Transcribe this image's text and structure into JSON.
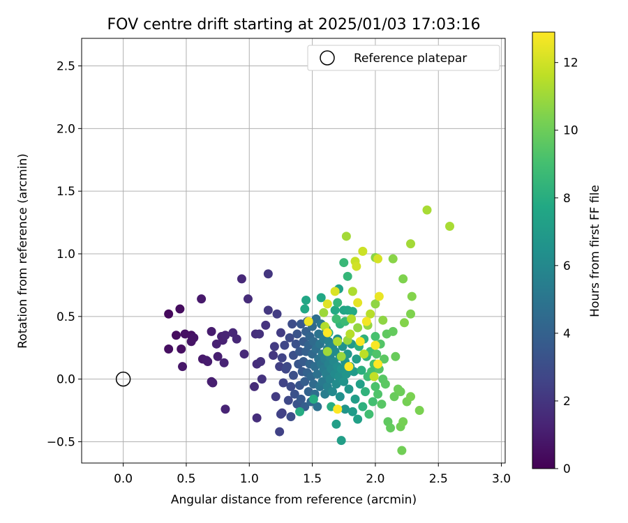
{
  "chart_data": {
    "type": "scatter",
    "title": "FOV centre drift starting at 2025/01/03 17:03:16",
    "xlabel": "Angular distance from reference (arcmin)",
    "ylabel": "Rotation from reference (arcmin)",
    "xlim": [
      -0.33,
      3.03
    ],
    "ylim": [
      -0.67,
      2.72
    ],
    "xticks": [
      0.0,
      0.5,
      1.0,
      1.5,
      2.0,
      2.5,
      3.0
    ],
    "xtick_labels": [
      "0.0",
      "0.5",
      "1.0",
      "1.5",
      "2.0",
      "2.5",
      "3.0"
    ],
    "yticks": [
      -0.5,
      0.0,
      0.5,
      1.0,
      1.5,
      2.0,
      2.5
    ],
    "ytick_labels": [
      "−0.5",
      "0.0",
      "0.5",
      "1.0",
      "1.5",
      "2.0",
      "2.5"
    ],
    "grid": true,
    "legend": {
      "position": "top-right",
      "entries": [
        "Reference platepar"
      ]
    },
    "reference_point": {
      "x": 0.0,
      "y": 0.0,
      "label": "Reference platepar"
    },
    "colorbar": {
      "label": "Hours from first FF file",
      "min": 0,
      "max": 12.9,
      "ticks": [
        0,
        2,
        4,
        6,
        8,
        10,
        12
      ],
      "tick_labels": [
        "0",
        "2",
        "4",
        "6",
        "8",
        "10",
        "12"
      ],
      "colormap": "viridis"
    },
    "points": [
      {
        "x": 0.36,
        "y": 0.52,
        "h": 0.3
      },
      {
        "x": 0.45,
        "y": 0.56,
        "h": 0.4
      },
      {
        "x": 0.42,
        "y": 0.35,
        "h": 0.4
      },
      {
        "x": 0.36,
        "y": 0.24,
        "h": 0.5
      },
      {
        "x": 0.46,
        "y": 0.24,
        "h": 0.5
      },
      {
        "x": 0.49,
        "y": 0.36,
        "h": 0.6
      },
      {
        "x": 0.54,
        "y": 0.35,
        "h": 0.6
      },
      {
        "x": 0.54,
        "y": 0.3,
        "h": 0.7
      },
      {
        "x": 0.56,
        "y": 0.33,
        "h": 0.7
      },
      {
        "x": 0.47,
        "y": 0.1,
        "h": 0.8
      },
      {
        "x": 0.62,
        "y": 0.64,
        "h": 0.9
      },
      {
        "x": 0.63,
        "y": 0.16,
        "h": 0.9
      },
      {
        "x": 0.66,
        "y": 0.15,
        "h": 1.0
      },
      {
        "x": 0.67,
        "y": 0.14,
        "h": 1.0
      },
      {
        "x": 0.7,
        "y": 0.38,
        "h": 1.0
      },
      {
        "x": 0.7,
        "y": -0.02,
        "h": 1.1
      },
      {
        "x": 0.71,
        "y": -0.03,
        "h": 1.1
      },
      {
        "x": 0.75,
        "y": 0.18,
        "h": 1.1
      },
      {
        "x": 0.74,
        "y": 0.28,
        "h": 1.2
      },
      {
        "x": 0.78,
        "y": 0.34,
        "h": 1.2
      },
      {
        "x": 0.79,
        "y": 0.31,
        "h": 1.2
      },
      {
        "x": 0.81,
        "y": 0.35,
        "h": 1.3
      },
      {
        "x": 0.8,
        "y": 0.13,
        "h": 1.3
      },
      {
        "x": 0.81,
        "y": -0.24,
        "h": 1.3
      },
      {
        "x": 0.87,
        "y": 0.37,
        "h": 1.4
      },
      {
        "x": 0.9,
        "y": 0.32,
        "h": 1.4
      },
      {
        "x": 0.94,
        "y": 0.8,
        "h": 1.5
      },
      {
        "x": 0.96,
        "y": 0.2,
        "h": 1.5
      },
      {
        "x": 0.99,
        "y": 0.64,
        "h": 1.6
      },
      {
        "x": 1.04,
        "y": -0.06,
        "h": 1.6
      },
      {
        "x": 1.05,
        "y": 0.36,
        "h": 1.7
      },
      {
        "x": 1.06,
        "y": 0.12,
        "h": 1.7
      },
      {
        "x": 1.06,
        "y": -0.31,
        "h": 1.7
      },
      {
        "x": 1.08,
        "y": 0.36,
        "h": 1.8
      },
      {
        "x": 1.09,
        "y": 0.14,
        "h": 1.8
      },
      {
        "x": 1.1,
        "y": 0.0,
        "h": 1.9
      },
      {
        "x": 1.13,
        "y": 0.43,
        "h": 1.9
      },
      {
        "x": 1.15,
        "y": 0.84,
        "h": 2.0
      },
      {
        "x": 1.15,
        "y": 0.55,
        "h": 2.1
      },
      {
        "x": 1.19,
        "y": 0.19,
        "h": 2.1
      },
      {
        "x": 1.2,
        "y": 0.26,
        "h": 2.2
      },
      {
        "x": 1.21,
        "y": -0.14,
        "h": 2.2
      },
      {
        "x": 1.22,
        "y": 0.52,
        "h": 2.3
      },
      {
        "x": 1.25,
        "y": 0.37,
        "h": 2.3
      },
      {
        "x": 1.24,
        "y": 0.1,
        "h": 2.4
      },
      {
        "x": 1.26,
        "y": -0.27,
        "h": 2.4
      },
      {
        "x": 1.24,
        "y": -0.42,
        "h": 2.5
      },
      {
        "x": 1.25,
        "y": -0.28,
        "h": 2.5
      },
      {
        "x": 1.26,
        "y": 0.17,
        "h": 2.6
      },
      {
        "x": 1.27,
        "y": -0.03,
        "h": 2.6
      },
      {
        "x": 1.28,
        "y": 0.27,
        "h": 2.7
      },
      {
        "x": 1.29,
        "y": 0.08,
        "h": 2.7
      },
      {
        "x": 1.3,
        "y": 0.1,
        "h": 2.8
      },
      {
        "x": 1.31,
        "y": -0.17,
        "h": 2.8
      },
      {
        "x": 1.32,
        "y": 0.33,
        "h": 2.9
      },
      {
        "x": 1.33,
        "y": -0.06,
        "h": 2.9
      },
      {
        "x": 1.33,
        "y": -0.3,
        "h": 3.0
      },
      {
        "x": 1.34,
        "y": 0.44,
        "h": 3.0
      },
      {
        "x": 1.35,
        "y": 0.19,
        "h": 3.1
      },
      {
        "x": 1.35,
        "y": 0.03,
        "h": 3.1
      },
      {
        "x": 1.36,
        "y": -0.12,
        "h": 3.2
      },
      {
        "x": 1.37,
        "y": 0.28,
        "h": 3.2
      },
      {
        "x": 1.38,
        "y": -0.2,
        "h": 3.3
      },
      {
        "x": 1.38,
        "y": 0.36,
        "h": 3.3
      },
      {
        "x": 1.39,
        "y": 0.12,
        "h": 3.4
      },
      {
        "x": 1.4,
        "y": -0.05,
        "h": 3.4
      },
      {
        "x": 1.4,
        "y": 0.22,
        "h": 3.5
      },
      {
        "x": 1.41,
        "y": 0.44,
        "h": 3.5
      },
      {
        "x": 1.41,
        "y": -0.16,
        "h": 3.6
      },
      {
        "x": 1.42,
        "y": 0.06,
        "h": 3.6
      },
      {
        "x": 1.43,
        "y": 0.3,
        "h": 3.7
      },
      {
        "x": 1.43,
        "y": 0.14,
        "h": 3.7
      },
      {
        "x": 1.44,
        "y": -0.02,
        "h": 3.8
      },
      {
        "x": 1.44,
        "y": -0.22,
        "h": 3.8
      },
      {
        "x": 1.45,
        "y": 0.38,
        "h": 3.9
      },
      {
        "x": 1.45,
        "y": 0.22,
        "h": 3.9
      },
      {
        "x": 1.46,
        "y": 0.05,
        "h": 4.0
      },
      {
        "x": 1.46,
        "y": 0.46,
        "h": 4.0
      },
      {
        "x": 1.47,
        "y": -0.1,
        "h": 4.1
      },
      {
        "x": 1.47,
        "y": 0.27,
        "h": 4.1
      },
      {
        "x": 1.48,
        "y": 0.12,
        "h": 4.2
      },
      {
        "x": 1.48,
        "y": 0.34,
        "h": 4.2
      },
      {
        "x": 1.49,
        "y": -0.18,
        "h": 4.3
      },
      {
        "x": 1.49,
        "y": 0.02,
        "h": 4.3
      },
      {
        "x": 1.5,
        "y": 0.2,
        "h": 4.4
      },
      {
        "x": 1.5,
        "y": 0.42,
        "h": 4.4
      },
      {
        "x": 1.51,
        "y": -0.04,
        "h": 4.5
      },
      {
        "x": 1.51,
        "y": 0.3,
        "h": 4.5
      },
      {
        "x": 1.52,
        "y": 0.1,
        "h": 4.6
      },
      {
        "x": 1.52,
        "y": -0.12,
        "h": 4.6
      },
      {
        "x": 1.53,
        "y": 0.24,
        "h": 4.7
      },
      {
        "x": 1.53,
        "y": 0.48,
        "h": 4.7
      },
      {
        "x": 1.54,
        "y": 0.04,
        "h": 4.8
      },
      {
        "x": 1.54,
        "y": -0.22,
        "h": 4.8
      },
      {
        "x": 1.55,
        "y": 0.16,
        "h": 4.9
      },
      {
        "x": 1.55,
        "y": 0.36,
        "h": 4.9
      },
      {
        "x": 1.56,
        "y": -0.06,
        "h": 5.0
      },
      {
        "x": 1.56,
        "y": 0.28,
        "h": 5.0
      },
      {
        "x": 1.57,
        "y": 0.12,
        "h": 5.1
      },
      {
        "x": 1.57,
        "y": 0.44,
        "h": 5.1
      },
      {
        "x": 1.58,
        "y": -0.02,
        "h": 5.2
      },
      {
        "x": 1.58,
        "y": 0.2,
        "h": 5.2
      },
      {
        "x": 1.59,
        "y": 0.08,
        "h": 5.3
      },
      {
        "x": 1.59,
        "y": 0.32,
        "h": 5.3
      },
      {
        "x": 1.6,
        "y": -0.12,
        "h": 5.4
      },
      {
        "x": 1.6,
        "y": 0.16,
        "h": 5.4
      },
      {
        "x": 1.61,
        "y": 0.4,
        "h": 5.5
      },
      {
        "x": 1.61,
        "y": 0.04,
        "h": 5.5
      },
      {
        "x": 1.62,
        "y": 0.24,
        "h": 5.6
      },
      {
        "x": 1.62,
        "y": -0.06,
        "h": 5.6
      },
      {
        "x": 1.63,
        "y": 0.12,
        "h": 5.7
      },
      {
        "x": 1.63,
        "y": 0.3,
        "h": 5.7
      },
      {
        "x": 1.64,
        "y": 0.0,
        "h": 5.8
      },
      {
        "x": 1.64,
        "y": 0.18,
        "h": 5.8
      },
      {
        "x": 1.65,
        "y": 0.08,
        "h": 5.9
      },
      {
        "x": 1.66,
        "y": 0.26,
        "h": 5.9
      },
      {
        "x": 1.66,
        "y": -0.1,
        "h": 6.0
      },
      {
        "x": 1.67,
        "y": 0.14,
        "h": 6.0
      },
      {
        "x": 1.68,
        "y": 0.04,
        "h": 6.1
      },
      {
        "x": 1.68,
        "y": 0.22,
        "h": 6.1
      },
      {
        "x": 1.69,
        "y": -0.04,
        "h": 6.2
      },
      {
        "x": 1.7,
        "y": 0.1,
        "h": 6.2
      },
      {
        "x": 1.7,
        "y": 0.32,
        "h": 6.3
      },
      {
        "x": 1.71,
        "y": 0.02,
        "h": 6.3
      },
      {
        "x": 1.72,
        "y": 0.18,
        "h": 6.4
      },
      {
        "x": 1.72,
        "y": -0.14,
        "h": 6.4
      },
      {
        "x": 1.73,
        "y": 0.08,
        "h": 6.5
      },
      {
        "x": 1.74,
        "y": 0.26,
        "h": 6.5
      },
      {
        "x": 1.75,
        "y": -0.02,
        "h": 6.6
      },
      {
        "x": 1.76,
        "y": 0.14,
        "h": 6.6
      },
      {
        "x": 1.76,
        "y": -0.24,
        "h": 6.7
      },
      {
        "x": 1.77,
        "y": 0.04,
        "h": 6.7
      },
      {
        "x": 1.78,
        "y": 0.2,
        "h": 6.8
      },
      {
        "x": 1.79,
        "y": -0.08,
        "h": 6.8
      },
      {
        "x": 1.8,
        "y": 0.1,
        "h": 6.9
      },
      {
        "x": 1.81,
        "y": 0.28,
        "h": 6.9
      },
      {
        "x": 1.82,
        "y": -0.26,
        "h": 7.0
      },
      {
        "x": 1.83,
        "y": 0.06,
        "h": 7.0
      },
      {
        "x": 1.84,
        "y": -0.16,
        "h": 7.1
      },
      {
        "x": 1.85,
        "y": 0.16,
        "h": 7.1
      },
      {
        "x": 1.73,
        "y": -0.49,
        "h": 7.2
      },
      {
        "x": 1.69,
        "y": -0.36,
        "h": 7.2
      },
      {
        "x": 1.86,
        "y": -0.32,
        "h": 7.3
      },
      {
        "x": 1.88,
        "y": -0.04,
        "h": 7.3
      },
      {
        "x": 1.71,
        "y": 0.72,
        "h": 7.4
      },
      {
        "x": 1.75,
        "y": 0.55,
        "h": 7.5
      },
      {
        "x": 1.78,
        "y": 0.55,
        "h": 7.6
      },
      {
        "x": 1.45,
        "y": 0.63,
        "h": 7.6
      },
      {
        "x": 1.44,
        "y": 0.56,
        "h": 7.7
      },
      {
        "x": 1.57,
        "y": 0.65,
        "h": 7.7
      },
      {
        "x": 1.68,
        "y": 0.55,
        "h": 7.8
      },
      {
        "x": 1.82,
        "y": 0.54,
        "h": 7.8
      },
      {
        "x": 1.4,
        "y": -0.26,
        "h": 7.9
      },
      {
        "x": 1.51,
        "y": -0.16,
        "h": 7.9
      },
      {
        "x": 1.63,
        "y": 0.37,
        "h": 8.0
      },
      {
        "x": 1.65,
        "y": -0.22,
        "h": 8.0
      },
      {
        "x": 1.87,
        "y": 0.26,
        "h": 8.1
      },
      {
        "x": 1.89,
        "y": 0.07,
        "h": 8.1
      },
      {
        "x": 1.9,
        "y": -0.22,
        "h": 8.2
      },
      {
        "x": 1.91,
        "y": 0.32,
        "h": 8.2
      },
      {
        "x": 1.92,
        "y": -0.1,
        "h": 8.3
      },
      {
        "x": 1.93,
        "y": 0.18,
        "h": 8.3
      },
      {
        "x": 1.7,
        "y": 0.61,
        "h": 8.4
      },
      {
        "x": 1.72,
        "y": 0.44,
        "h": 8.4
      },
      {
        "x": 1.78,
        "y": 0.82,
        "h": 8.5
      },
      {
        "x": 1.75,
        "y": 0.93,
        "h": 8.6
      },
      {
        "x": 1.76,
        "y": 0.46,
        "h": 8.7
      },
      {
        "x": 1.69,
        "y": 0.48,
        "h": 8.8
      },
      {
        "x": 1.94,
        "y": 0.02,
        "h": 8.8
      },
      {
        "x": 1.95,
        "y": -0.28,
        "h": 8.9
      },
      {
        "x": 1.96,
        "y": 0.22,
        "h": 8.9
      },
      {
        "x": 1.97,
        "y": 0.06,
        "h": 9.0
      },
      {
        "x": 1.98,
        "y": -0.18,
        "h": 9.0
      },
      {
        "x": 1.99,
        "y": 0.12,
        "h": 9.1
      },
      {
        "x": 2.0,
        "y": 0.34,
        "h": 9.1
      },
      {
        "x": 2.0,
        "y": -0.06,
        "h": 9.2
      },
      {
        "x": 2.01,
        "y": 0.2,
        "h": 9.3
      },
      {
        "x": 2.02,
        "y": -0.12,
        "h": 9.3
      },
      {
        "x": 2.03,
        "y": 0.08,
        "h": 9.4
      },
      {
        "x": 2.04,
        "y": 0.28,
        "h": 9.4
      },
      {
        "x": 2.05,
        "y": -0.2,
        "h": 9.5
      },
      {
        "x": 2.06,
        "y": 0.0,
        "h": 9.5
      },
      {
        "x": 2.07,
        "y": 0.16,
        "h": 9.6
      },
      {
        "x": 2.08,
        "y": -0.04,
        "h": 9.6
      },
      {
        "x": 2.09,
        "y": 0.36,
        "h": 9.7
      },
      {
        "x": 2.1,
        "y": -0.34,
        "h": 9.7
      },
      {
        "x": 2.12,
        "y": -0.39,
        "h": 9.8
      },
      {
        "x": 2.14,
        "y": 0.38,
        "h": 9.8
      },
      {
        "x": 2.15,
        "y": -0.14,
        "h": 9.9
      },
      {
        "x": 2.16,
        "y": 0.18,
        "h": 9.9
      },
      {
        "x": 2.18,
        "y": -0.08,
        "h": 10.0
      },
      {
        "x": 2.2,
        "y": -0.1,
        "h": 10.0
      },
      {
        "x": 2.2,
        "y": -0.38,
        "h": 10.1
      },
      {
        "x": 2.21,
        "y": -0.57,
        "h": 10.1
      },
      {
        "x": 2.22,
        "y": -0.34,
        "h": 10.2
      },
      {
        "x": 2.25,
        "y": -0.18,
        "h": 10.2
      },
      {
        "x": 2.28,
        "y": -0.14,
        "h": 10.3
      },
      {
        "x": 2.35,
        "y": -0.25,
        "h": 10.3
      },
      {
        "x": 2.22,
        "y": 0.8,
        "h": 10.4
      },
      {
        "x": 2.28,
        "y": 0.52,
        "h": 10.4
      },
      {
        "x": 2.29,
        "y": 0.66,
        "h": 10.5
      },
      {
        "x": 2.23,
        "y": 0.45,
        "h": 10.5
      },
      {
        "x": 2.14,
        "y": 0.96,
        "h": 10.6
      },
      {
        "x": 2.0,
        "y": 0.97,
        "h": 10.6
      },
      {
        "x": 2.0,
        "y": 0.6,
        "h": 10.7
      },
      {
        "x": 2.06,
        "y": 0.47,
        "h": 10.7
      },
      {
        "x": 1.94,
        "y": 0.43,
        "h": 10.8
      },
      {
        "x": 1.86,
        "y": 0.41,
        "h": 10.8
      },
      {
        "x": 1.78,
        "y": 0.31,
        "h": 10.9
      },
      {
        "x": 1.73,
        "y": 0.18,
        "h": 10.9
      },
      {
        "x": 1.62,
        "y": 0.22,
        "h": 11.0
      },
      {
        "x": 1.59,
        "y": 0.53,
        "h": 11.0
      },
      {
        "x": 1.77,
        "y": 1.14,
        "h": 11.1
      },
      {
        "x": 2.28,
        "y": 1.08,
        "h": 11.1
      },
      {
        "x": 2.41,
        "y": 1.35,
        "h": 11.2
      },
      {
        "x": 2.59,
        "y": 1.22,
        "h": 11.2
      },
      {
        "x": 1.82,
        "y": 0.7,
        "h": 11.3
      },
      {
        "x": 1.7,
        "y": 0.3,
        "h": 11.3
      },
      {
        "x": 1.81,
        "y": 0.48,
        "h": 11.4
      },
      {
        "x": 1.6,
        "y": 0.42,
        "h": 11.4
      },
      {
        "x": 1.8,
        "y": 0.36,
        "h": 11.5
      },
      {
        "x": 1.96,
        "y": 0.52,
        "h": 11.5
      },
      {
        "x": 1.91,
        "y": 0.2,
        "h": 11.6
      },
      {
        "x": 1.99,
        "y": 0.02,
        "h": 11.7
      },
      {
        "x": 1.84,
        "y": 0.94,
        "h": 11.8
      },
      {
        "x": 1.9,
        "y": 1.02,
        "h": 11.9
      },
      {
        "x": 1.85,
        "y": 0.9,
        "h": 12.0
      },
      {
        "x": 2.02,
        "y": 0.96,
        "h": 12.1
      },
      {
        "x": 1.68,
        "y": 0.7,
        "h": 12.2
      },
      {
        "x": 1.62,
        "y": 0.6,
        "h": 12.3
      },
      {
        "x": 1.86,
        "y": 0.61,
        "h": 12.4
      },
      {
        "x": 2.03,
        "y": 0.66,
        "h": 12.5
      },
      {
        "x": 1.47,
        "y": 0.46,
        "h": 12.6
      },
      {
        "x": 1.93,
        "y": 0.46,
        "h": 12.7
      },
      {
        "x": 1.88,
        "y": 0.3,
        "h": 12.8
      },
      {
        "x": 2.0,
        "y": 0.27,
        "h": 12.8
      },
      {
        "x": 1.79,
        "y": 0.1,
        "h": 12.9
      },
      {
        "x": 2.02,
        "y": 0.12,
        "h": 12.9
      },
      {
        "x": 1.7,
        "y": -0.24,
        "h": 12.9
      },
      {
        "x": 1.62,
        "y": 0.37,
        "h": 12.9
      }
    ]
  }
}
